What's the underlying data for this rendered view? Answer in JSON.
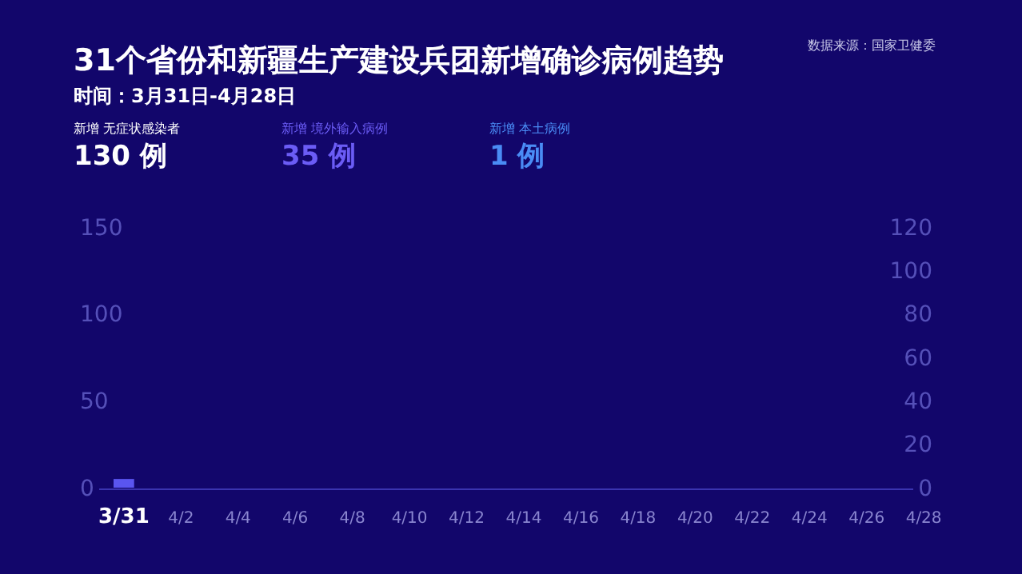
{
  "chart_data": {
    "type": "bar",
    "title": "31个省份和新疆生产建设兵团新增确诊病例趋势",
    "subtitle": "时间：3月31日-4月28日",
    "annotations": [
      "数据来源：国家卫健委",
      "新增 无症状感染者",
      "130 例",
      "新增 境外输入病例",
      "35 例",
      "新增 本土病例",
      "1 例"
    ],
    "categories": [
      "3/31",
      null,
      "4/2",
      null,
      "4/4",
      null,
      "4/6",
      null,
      "4/8",
      null,
      "4/10",
      null,
      "4/12",
      null,
      "4/14",
      null,
      "4/16",
      null,
      "4/18",
      null,
      "4/20",
      null,
      "4/22",
      null,
      "4/24",
      null,
      "4/26",
      null,
      "4/28"
    ],
    "series": [
      {
        "color": "#5a55f0",
        "values": [
          5,
          null,
          null,
          null,
          null,
          null,
          null,
          null,
          null,
          null,
          null,
          null,
          null,
          null,
          null,
          null,
          null,
          null,
          null,
          null,
          null,
          null,
          null,
          null,
          null,
          null,
          null,
          null,
          null
        ]
      }
    ],
    "ylim": [
      0,
      150
    ],
    "yticks": [
      0,
      50,
      100,
      150
    ],
    "y2lim": [
      0,
      120
    ],
    "y2ticks": [
      0,
      20,
      40,
      60,
      80,
      100,
      120
    ],
    "grid": false
  }
}
